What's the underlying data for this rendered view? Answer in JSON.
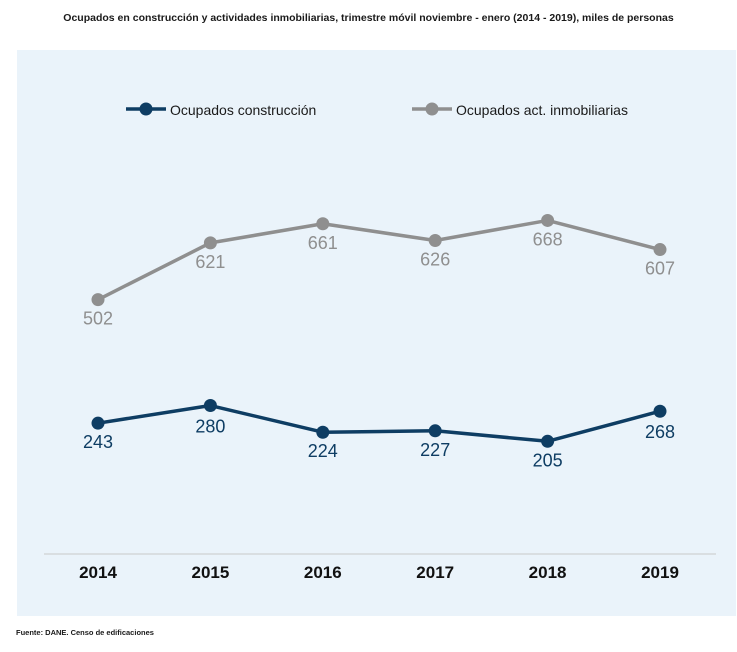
{
  "title": "Ocupados en construcción y actividades inmobiliarias, trimestre móvil noviembre - enero (2014 - 2019), miles de personas",
  "source": "Fuente: DANE. Censo de edificaciones",
  "colors": {
    "background": "#eaf3fa",
    "construccion": "#0e3d63",
    "inmobiliarias": "#8f8f8f",
    "axis": "#c8c8c8"
  },
  "chart_data": {
    "type": "line",
    "categories": [
      "2014",
      "2015",
      "2016",
      "2017",
      "2018",
      "2019"
    ],
    "series": [
      {
        "name": "Ocupados construcción",
        "color": "#0e3d63",
        "values": [
          243,
          280,
          224,
          227,
          205,
          268
        ]
      },
      {
        "name": "Ocupados act. inmobiliarias",
        "color": "#8f8f8f",
        "values": [
          502,
          621,
          661,
          626,
          668,
          607
        ]
      }
    ],
    "xlabel": "",
    "ylabel": "",
    "ylim": [
      40,
      800
    ],
    "grid": false,
    "legend": "top"
  }
}
